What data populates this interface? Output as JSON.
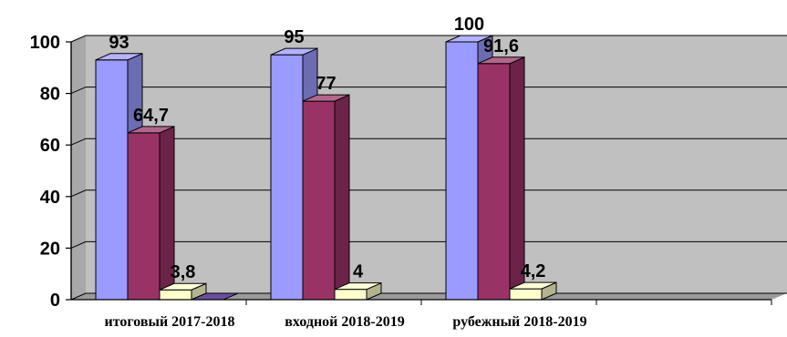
{
  "chart_data": {
    "type": "bar",
    "categories": [
      "итоговый 2017-2018",
      "входной 2018-2019",
      "рубежный 2018-2019"
    ],
    "series": [
      {
        "values": [
          93,
          95,
          100
        ],
        "color": "#9a9aff"
      },
      {
        "values": [
          64.7,
          77,
          91.6
        ],
        "color": "#993366"
      },
      {
        "values": [
          3.8,
          4,
          4.2
        ],
        "color": "#ffffcc"
      },
      {
        "values": [
          0,
          null,
          null
        ],
        "color": "#6a4fa0"
      }
    ],
    "data_labels": [
      [
        "93",
        "95",
        "100"
      ],
      [
        "64,7",
        "77",
        "91,6"
      ],
      [
        "3,8",
        "4",
        "4,2"
      ],
      [
        "",
        "",
        ""
      ]
    ],
    "yticks": [
      "0",
      "20",
      "40",
      "60",
      "80",
      "100"
    ],
    "ylim": [
      0,
      100
    ],
    "grid": true,
    "style": "3d-columns",
    "wall_color": "#c0c0c0",
    "title": "",
    "xlabel": "",
    "ylabel": ""
  }
}
